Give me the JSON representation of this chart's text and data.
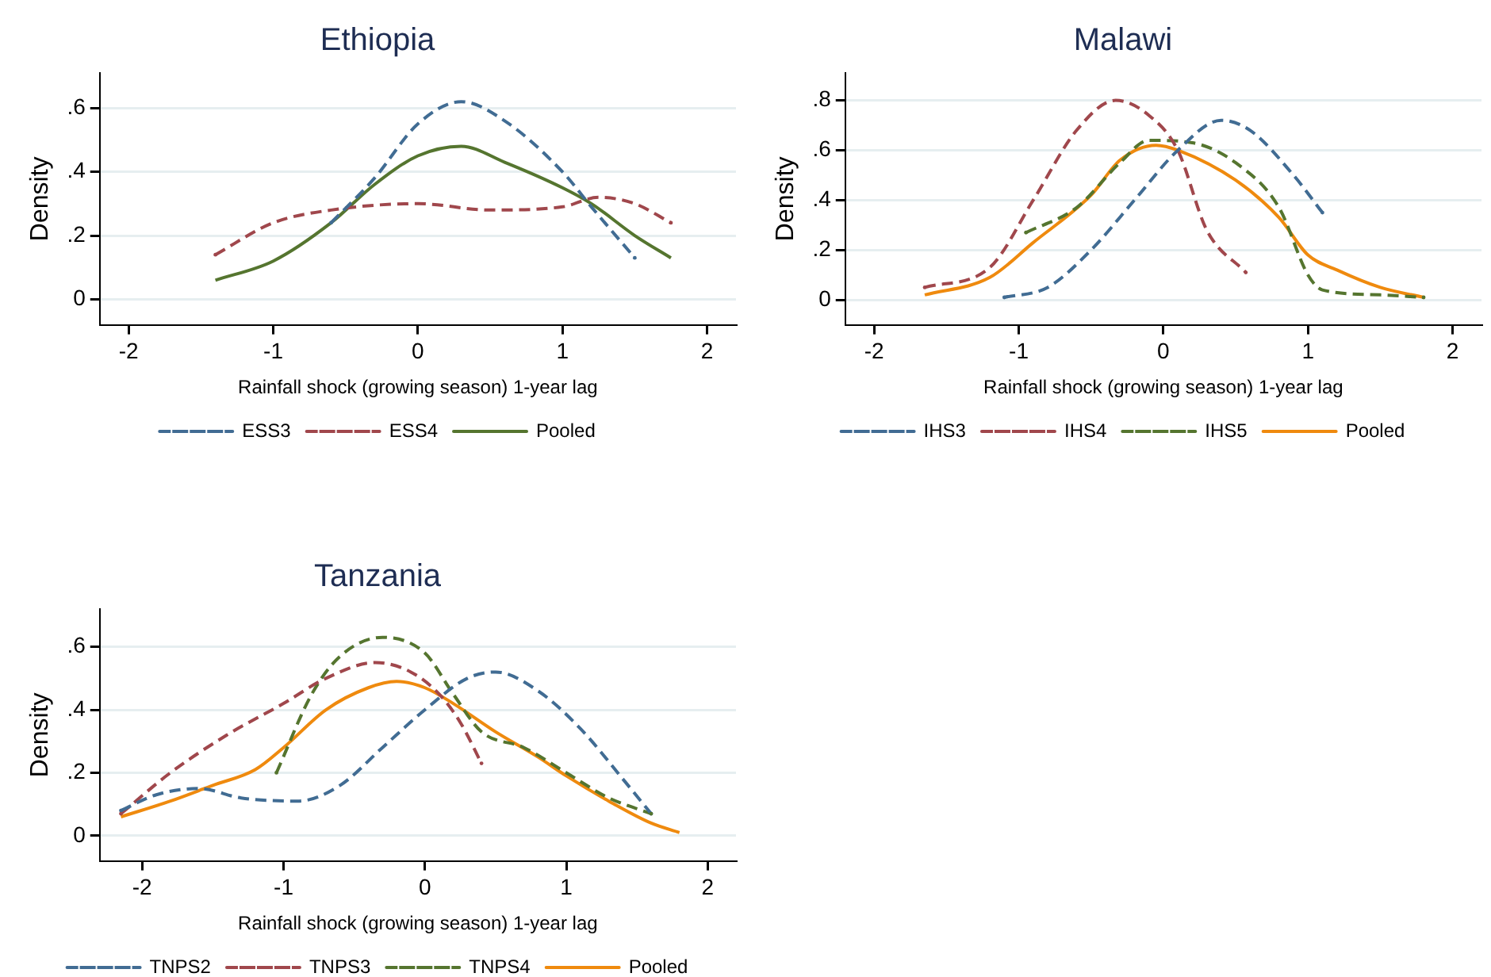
{
  "chart_data": [
    {
      "type": "line",
      "title": "Ethiopia",
      "xlabel": "Rainfall shock (growing season) 1-year lag",
      "ylabel": "Density",
      "xlim": [
        -2.2,
        2.2
      ],
      "xticks": [
        -2,
        -1,
        0,
        1,
        2
      ],
      "ylim": [
        -0.08,
        0.71
      ],
      "yticks": [
        {
          "value": 0,
          "label": "0"
        },
        {
          "value": 0.2,
          "label": ".2"
        },
        {
          "value": 0.4,
          "label": ".4"
        },
        {
          "value": 0.6,
          "label": ".6"
        }
      ],
      "grid": "y",
      "legend": "bottom",
      "marker": "none",
      "series": [
        {
          "name": "ESS3",
          "color": "#416c93",
          "line_style": "dashed",
          "x": [
            -0.6,
            -0.3,
            0,
            0.3,
            0.6,
            1,
            1.2,
            1.5
          ],
          "values": [
            0.24,
            0.38,
            0.55,
            0.62,
            0.56,
            0.4,
            0.29,
            0.13
          ]
        },
        {
          "name": "ESS4",
          "color": "#a0474c",
          "line_style": "dashed",
          "x": [
            -1.4,
            -1,
            -0.6,
            0,
            0.5,
            1,
            1.25,
            1.5,
            1.75
          ],
          "values": [
            0.14,
            0.24,
            0.28,
            0.3,
            0.28,
            0.29,
            0.32,
            0.3,
            0.24
          ]
        },
        {
          "name": "Pooled",
          "color": "#55752f",
          "line_style": "solid",
          "x": [
            -1.4,
            -1,
            -0.6,
            -0.3,
            0,
            0.3,
            0.6,
            1,
            1.2,
            1.5,
            1.75
          ],
          "values": [
            0.06,
            0.12,
            0.24,
            0.36,
            0.45,
            0.48,
            0.43,
            0.35,
            0.3,
            0.2,
            0.13
          ]
        }
      ]
    },
    {
      "type": "line",
      "title": "Malawi",
      "xlabel": "Rainfall shock (growing season) 1-year lag",
      "ylabel": "Density",
      "xlim": [
        -2.2,
        2.2
      ],
      "xticks": [
        -2,
        -1,
        0,
        1,
        2
      ],
      "ylim": [
        -0.1,
        0.91
      ],
      "yticks": [
        {
          "value": 0,
          "label": "0"
        },
        {
          "value": 0.2,
          "label": ".2"
        },
        {
          "value": 0.4,
          "label": ".4"
        },
        {
          "value": 0.6,
          "label": ".6"
        },
        {
          "value": 0.8,
          "label": ".8"
        }
      ],
      "grid": "y",
      "legend": "bottom",
      "marker": "none",
      "series": [
        {
          "name": "IHS3",
          "color": "#416c93",
          "line_style": "dashed",
          "x": [
            -1.1,
            -0.8,
            -0.5,
            -0.2,
            0.1,
            0.4,
            0.6,
            0.9,
            1.1
          ],
          "values": [
            0.01,
            0.05,
            0.2,
            0.4,
            0.6,
            0.72,
            0.68,
            0.5,
            0.35
          ]
        },
        {
          "name": "IHS4",
          "color": "#a0474c",
          "line_style": "dashed",
          "x": [
            -1.65,
            -1.2,
            -0.9,
            -0.6,
            -0.33,
            -0.1,
            0.1,
            0.3,
            0.57
          ],
          "values": [
            0.05,
            0.13,
            0.4,
            0.68,
            0.8,
            0.74,
            0.6,
            0.28,
            0.11
          ]
        },
        {
          "name": "IHS5",
          "color": "#55752f",
          "line_style": "dashed",
          "x": [
            -0.95,
            -0.6,
            -0.3,
            -0.1,
            0.2,
            0.5,
            0.8,
            1,
            1.1,
            1.5,
            1.8
          ],
          "values": [
            0.27,
            0.37,
            0.55,
            0.64,
            0.63,
            0.55,
            0.37,
            0.1,
            0.04,
            0.02,
            0.01
          ]
        },
        {
          "name": "Pooled",
          "color": "#ef8a0e",
          "line_style": "solid",
          "x": [
            -1.65,
            -1.2,
            -0.9,
            -0.5,
            -0.3,
            -0.05,
            0.1,
            0.5,
            0.8,
            1,
            1.2,
            1.5,
            1.8
          ],
          "values": [
            0.02,
            0.09,
            0.23,
            0.42,
            0.56,
            0.62,
            0.6,
            0.48,
            0.33,
            0.18,
            0.12,
            0.05,
            0.01
          ]
        }
      ]
    },
    {
      "type": "line",
      "title": "Tanzania",
      "xlabel": "Rainfall shock (growing season) 1-year lag",
      "ylabel": "Density",
      "xlim": [
        -2.3,
        2.2
      ],
      "xticks": [
        -2,
        -1,
        0,
        1,
        2
      ],
      "ylim": [
        -0.08,
        0.72
      ],
      "yticks": [
        {
          "value": 0,
          "label": "0"
        },
        {
          "value": 0.2,
          "label": ".2"
        },
        {
          "value": 0.4,
          "label": ".4"
        },
        {
          "value": 0.6,
          "label": ".6"
        }
      ],
      "grid": "y",
      "legend": "bottom",
      "marker": "none",
      "series": [
        {
          "name": "TNPS2",
          "color": "#416c93",
          "line_style": "dashed",
          "x": [
            -2.15,
            -1.9,
            -1.6,
            -1.3,
            -0.9,
            -0.6,
            -0.3,
            0,
            0.3,
            0.5,
            0.8,
            1.1,
            1.4,
            1.6
          ],
          "values": [
            0.08,
            0.13,
            0.15,
            0.12,
            0.11,
            0.16,
            0.28,
            0.4,
            0.5,
            0.52,
            0.46,
            0.34,
            0.18,
            0.07
          ]
        },
        {
          "name": "TNPS3",
          "color": "#a0474c",
          "line_style": "dashed",
          "x": [
            -2.15,
            -1.8,
            -1.4,
            -1,
            -0.7,
            -0.35,
            -0.1,
            0.1,
            0.25,
            0.4
          ],
          "values": [
            0.07,
            0.2,
            0.32,
            0.42,
            0.5,
            0.55,
            0.52,
            0.45,
            0.36,
            0.23
          ]
        },
        {
          "name": "TNPS4",
          "color": "#55752f",
          "line_style": "dashed",
          "x": [
            -1.05,
            -0.8,
            -0.6,
            -0.3,
            0,
            0.2,
            0.4,
            0.7,
            1,
            1.3,
            1.6
          ],
          "values": [
            0.2,
            0.45,
            0.57,
            0.63,
            0.58,
            0.45,
            0.33,
            0.28,
            0.2,
            0.12,
            0.07
          ]
        },
        {
          "name": "Pooled",
          "color": "#ef8a0e",
          "line_style": "solid",
          "x": [
            -2.15,
            -1.8,
            -1.5,
            -1.2,
            -1,
            -0.7,
            -0.4,
            -0.2,
            0,
            0.2,
            0.5,
            0.8,
            1,
            1.3,
            1.6,
            1.8
          ],
          "values": [
            0.06,
            0.11,
            0.16,
            0.21,
            0.28,
            0.4,
            0.47,
            0.49,
            0.47,
            0.42,
            0.33,
            0.25,
            0.19,
            0.11,
            0.04,
            0.01
          ]
        }
      ]
    }
  ]
}
